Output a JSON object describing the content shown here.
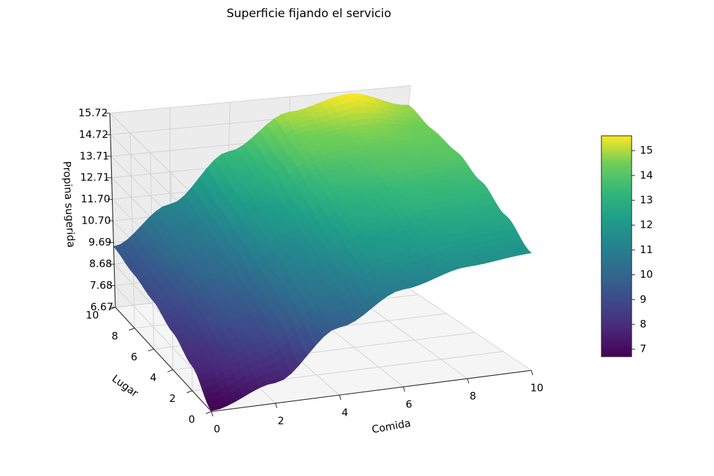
{
  "chart_data": {
    "type": "surface",
    "title": "Superficie fijando el servicio",
    "xlabel": "Comida",
    "ylabel": "Lugar",
    "zlabel": "Propina sugerida",
    "xlim": [
      0,
      10
    ],
    "ylim": [
      0,
      10
    ],
    "zlim": [
      6.67,
      15.72
    ],
    "xticks": [
      "0",
      "2",
      "4",
      "6",
      "8",
      "10"
    ],
    "yticks": [
      "0",
      "2",
      "4",
      "6",
      "8",
      "10"
    ],
    "zticks": [
      "6.67",
      "7.68",
      "8.68",
      "9.69",
      "10.70",
      "11.70",
      "12.71",
      "13.71",
      "14.72",
      "15.72"
    ],
    "colormap": "viridis",
    "colorbar": {
      "ticks": [
        "7",
        "8",
        "9",
        "10",
        "11",
        "12",
        "13",
        "14",
        "15"
      ],
      "range": [
        6.7,
        15.6
      ]
    },
    "grid": true,
    "x": [
      0,
      2,
      4,
      6,
      8,
      10
    ],
    "y": [
      0,
      2,
      4,
      6,
      8,
      10
    ],
    "z": [
      [
        6.7,
        7.6,
        9.7,
        11.0,
        11.6,
        11.8
      ],
      [
        7.8,
        8.9,
        10.7,
        12.0,
        12.6,
        12.7
      ],
      [
        8.4,
        9.6,
        11.4,
        12.8,
        13.4,
        13.5
      ],
      [
        8.9,
        10.2,
        12.1,
        13.6,
        14.0,
        14.1
      ],
      [
        9.2,
        10.7,
        12.8,
        14.4,
        14.6,
        14.4
      ],
      [
        9.5,
        11.2,
        13.4,
        15.0,
        15.6,
        14.8
      ]
    ]
  }
}
